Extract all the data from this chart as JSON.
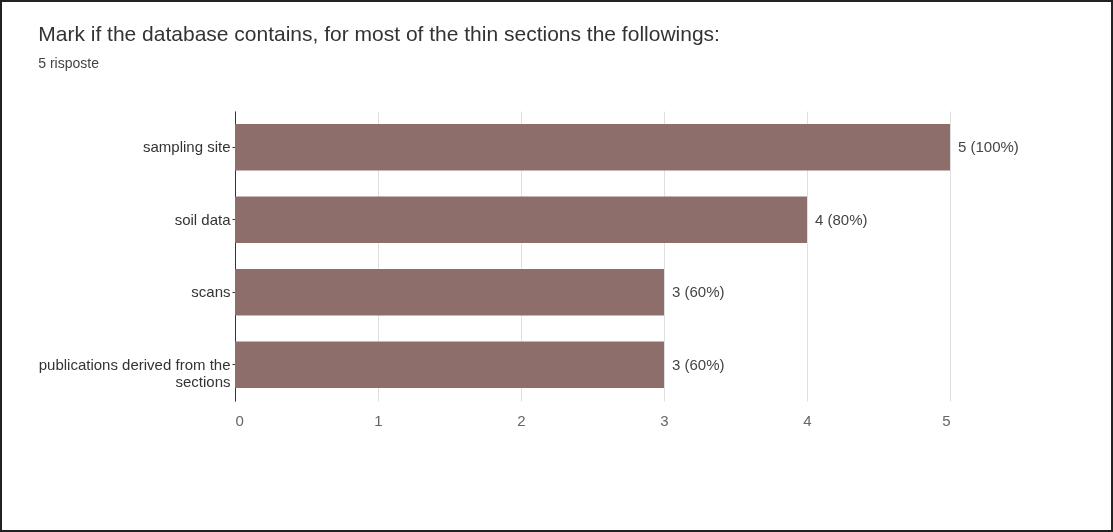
{
  "chart_data": {
    "type": "bar",
    "orientation": "horizontal",
    "title": "Mark if the database contains, for most of the thin sections the followings:",
    "subtitle": "5 risposte",
    "categories": [
      "sampling site",
      "soil data",
      "scans",
      "publications derived from the sections"
    ],
    "values": [
      5,
      4,
      3,
      3
    ],
    "value_labels": [
      "5 (100%)",
      "4 (80%)",
      "3 (60%)",
      "3 (60%)"
    ],
    "color": "#8d6e6a",
    "xlim": [
      0,
      5
    ],
    "xticks": [
      0,
      1,
      2,
      3,
      4,
      5
    ],
    "grid": "x"
  }
}
